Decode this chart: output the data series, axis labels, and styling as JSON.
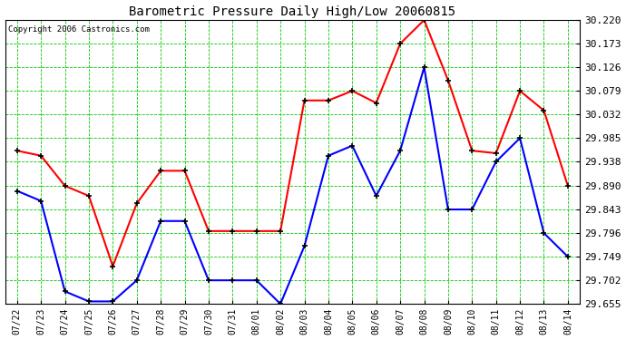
{
  "title": "Barometric Pressure Daily High/Low 20060815",
  "copyright": "Copyright 2006 Castronics.com",
  "fig_bg_color": "#ffffff",
  "plot_bg_color": "#ffffff",
  "grid_color": "#00cc00",
  "line_color_high": "#ff0000",
  "line_color_low": "#0000ff",
  "title_color": "#000000",
  "label_color": "#000000",
  "x_labels": [
    "07/22",
    "07/23",
    "07/24",
    "07/25",
    "07/26",
    "07/27",
    "07/28",
    "07/29",
    "07/30",
    "07/31",
    "08/01",
    "08/02",
    "08/03",
    "08/04",
    "08/05",
    "08/06",
    "08/07",
    "08/08",
    "08/09",
    "08/10",
    "08/11",
    "08/12",
    "08/13",
    "08/14"
  ],
  "high_values": [
    29.96,
    29.95,
    29.89,
    29.87,
    29.73,
    29.855,
    29.92,
    29.92,
    29.8,
    29.8,
    29.8,
    29.8,
    30.06,
    30.06,
    30.079,
    30.055,
    30.173,
    30.22,
    30.1,
    29.96,
    29.955,
    30.079,
    30.04,
    29.89
  ],
  "low_values": [
    29.88,
    29.86,
    29.68,
    29.66,
    29.66,
    29.702,
    29.82,
    29.82,
    29.702,
    29.702,
    29.702,
    29.655,
    29.77,
    29.95,
    29.97,
    29.87,
    29.96,
    30.126,
    29.843,
    29.843,
    29.938,
    29.985,
    29.796,
    29.749
  ],
  "ylim": [
    29.655,
    30.22
  ],
  "yticks": [
    29.655,
    29.702,
    29.749,
    29.796,
    29.843,
    29.89,
    29.938,
    29.985,
    30.032,
    30.079,
    30.126,
    30.173,
    30.22
  ],
  "border_color": "#000000"
}
